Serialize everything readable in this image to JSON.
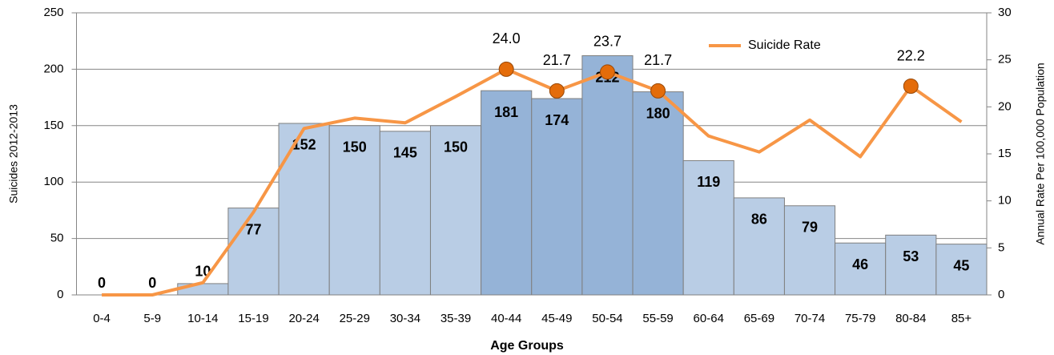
{
  "chart_data": {
    "type": "combo",
    "categories": [
      "0-4",
      "5-9",
      "10-14",
      "15-19",
      "20-24",
      "25-29",
      "30-34",
      "35-39",
      "40-44",
      "45-49",
      "50-54",
      "55-59",
      "60-64",
      "65-69",
      "70-74",
      "75-79",
      "80-84",
      "85+"
    ],
    "series": [
      {
        "type": "bar",
        "axis": "y",
        "values": [
          0,
          0,
          10,
          77,
          152,
          150,
          145,
          150,
          181,
          174,
          212,
          180,
          119,
          86,
          79,
          46,
          53,
          45
        ],
        "colors": [
          "#b9cde5",
          "#b9cde5",
          "#b9cde5",
          "#b9cde5",
          "#b9cde5",
          "#b9cde5",
          "#b9cde5",
          "#b9cde5",
          "#95b3d7",
          "#95b3d7",
          "#95b3d7",
          "#95b3d7",
          "#b9cde5",
          "#b9cde5",
          "#b9cde5",
          "#b9cde5",
          "#b9cde5",
          "#b9cde5"
        ]
      },
      {
        "type": "line",
        "axis": "y2",
        "name": "Suicide Rate",
        "color": "#f79646",
        "marker_color": "#e46c0a",
        "values": [
          0,
          0,
          1.3,
          8.8,
          17.7,
          18.8,
          18.3,
          21.1,
          24.0,
          21.7,
          23.7,
          21.7,
          16.9,
          15.2,
          18.6,
          14.7,
          22.2,
          18.4
        ],
        "value_labels": [
          null,
          null,
          null,
          null,
          null,
          null,
          null,
          null,
          "24.0",
          "21.7",
          "23.7",
          "21.7",
          null,
          null,
          null,
          null,
          "22.2",
          null
        ]
      }
    ],
    "ylabel": "Suicides 2012-2013",
    "y2label": "Annual Rate Per 100,000 Population",
    "xlabel": "Age Groups",
    "ylim": [
      0,
      250
    ],
    "yticks": [
      0,
      50,
      100,
      150,
      200,
      250
    ],
    "y2lim": [
      0,
      30
    ],
    "y2ticks": [
      0,
      5,
      10,
      15,
      20,
      25,
      30
    ],
    "grid": true,
    "legend": "top-right"
  }
}
